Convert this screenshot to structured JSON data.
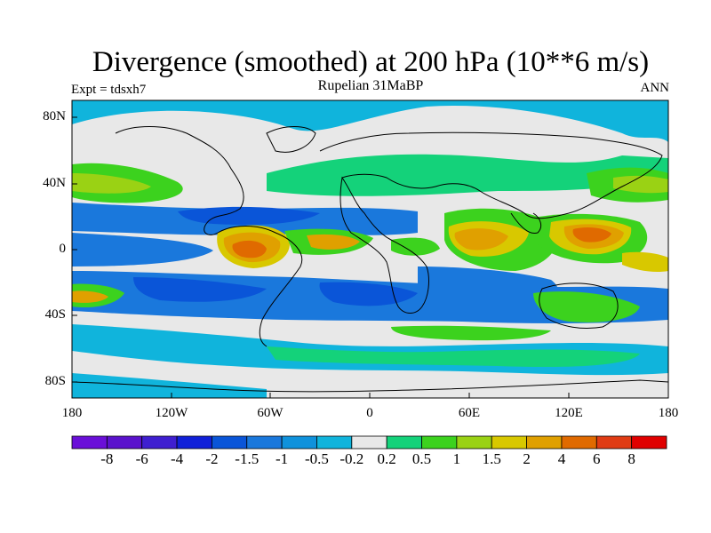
{
  "header": {
    "title": "Divergence (smoothed) at 200 hPa (10**6 m/s)",
    "subtitle": "Rupelian  31MaBP",
    "experiment": "Expt = tdsxh7",
    "period": "ANN"
  },
  "axes": {
    "lat_labels": [
      "80N",
      "40N",
      "0",
      "40S",
      "80S"
    ],
    "lon_labels": [
      "180",
      "120W",
      "60W",
      "0",
      "60E",
      "120E",
      "180"
    ]
  },
  "colorbar": {
    "labels": [
      "-8",
      "-6",
      "-4",
      "-2",
      "-1.5",
      "-1",
      "-0.5",
      "-0.2",
      "0.2",
      "0.5",
      "1",
      "1.5",
      "2",
      "4",
      "6",
      "8"
    ],
    "colors": [
      "#6a0fd8",
      "#5a12cc",
      "#3f1fd0",
      "#1020d8",
      "#0a55d8",
      "#1a78dc",
      "#0f92dc",
      "#10b4dc",
      "#e8e8e8",
      "#14d27a",
      "#3cd21e",
      "#9ad214",
      "#d8c800",
      "#e0a000",
      "#e06a00",
      "#e03c14",
      "#e00000"
    ]
  },
  "map_colors": {
    "land_background": "#e8e8e8",
    "strong_conv": "#1020d8",
    "conv2": "#0a55d8",
    "conv1": "#1a78dc",
    "weak_conv": "#0f92dc",
    "very_weak_conv": "#10b4dc",
    "weak_div": "#14d27a",
    "div1": "#3cd21e",
    "div2": "#9ad214",
    "div3": "#d8c800",
    "div4": "#e0a000",
    "div5": "#e06a00"
  }
}
